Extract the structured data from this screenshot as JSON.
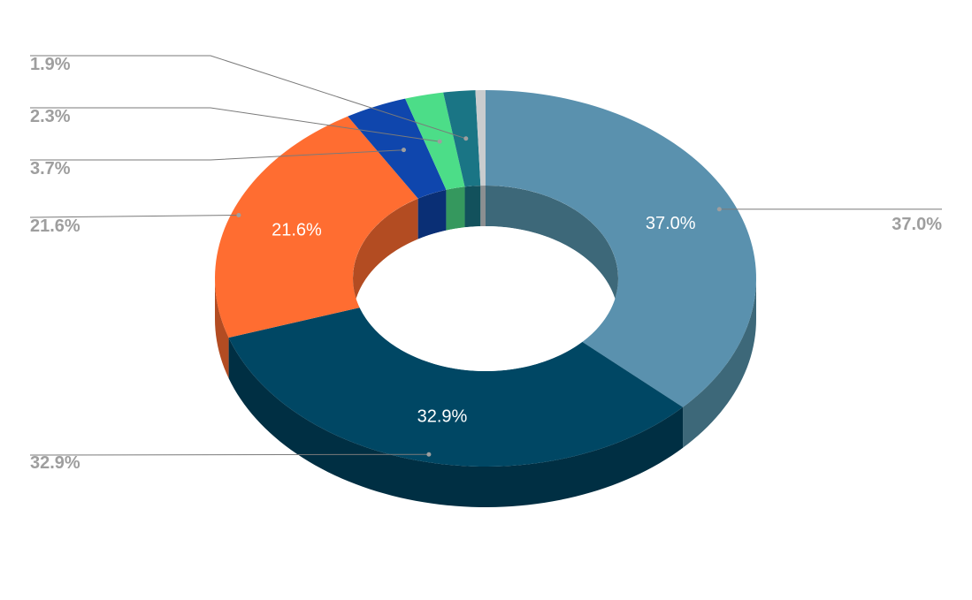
{
  "chart_data": {
    "type": "pie",
    "variant": "3d-donut",
    "title": "",
    "legend": "none",
    "slices": [
      {
        "value": 37.0,
        "label": "37.0%",
        "color": "#5a91ae",
        "side_color": "#3d6879",
        "show_inner_label": true
      },
      {
        "value": 32.9,
        "label": "32.9%",
        "color": "#004764",
        "side_color": "#002f43",
        "show_inner_label": true
      },
      {
        "value": 21.6,
        "label": "21.6%",
        "color": "#ff6d31",
        "side_color": "#b34c22",
        "show_inner_label": true
      },
      {
        "value": 3.7,
        "label": "3.7%",
        "color": "#0f46ad",
        "side_color": "#0a2f75",
        "show_inner_label": false
      },
      {
        "value": 2.3,
        "label": "2.3%",
        "color": "#4cdd88",
        "side_color": "#35985e",
        "show_inner_label": false
      },
      {
        "value": 1.9,
        "label": "1.9%",
        "color": "#1a7585",
        "side_color": "#12515c",
        "show_inner_label": false
      },
      {
        "value": 0.6,
        "label": "",
        "color": "#c9ccce",
        "side_color": "#8c8f91",
        "show_inner_label": false
      }
    ]
  }
}
